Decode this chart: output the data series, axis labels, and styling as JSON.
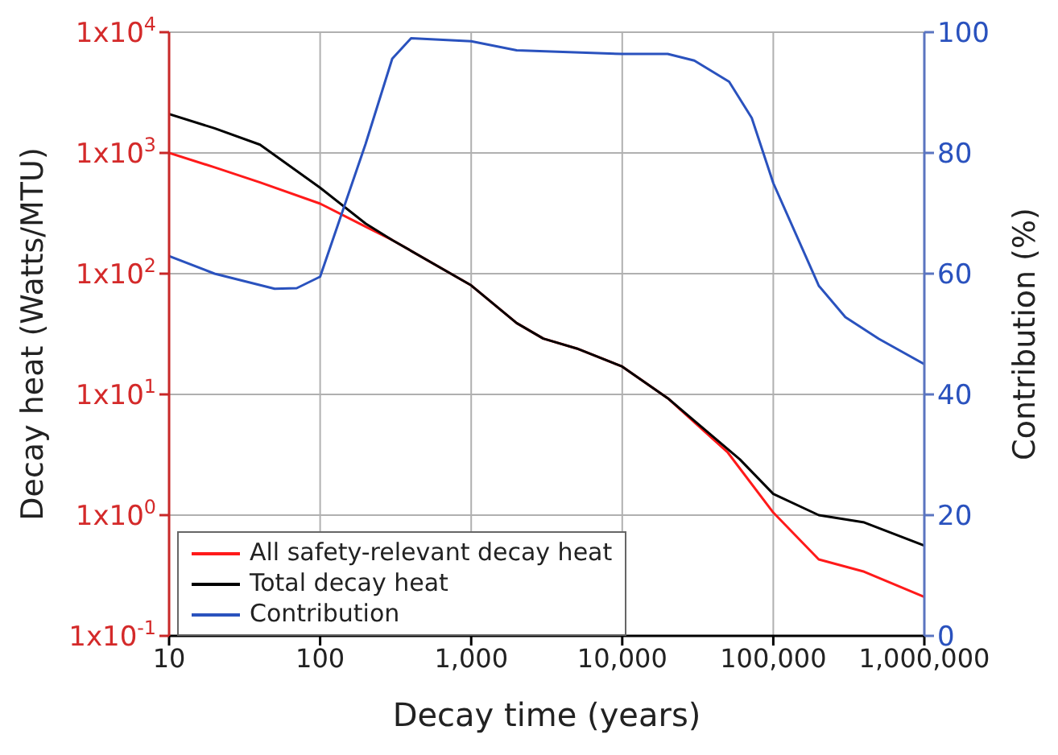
{
  "chart_data": {
    "type": "line",
    "xlabel": "Decay time (years)",
    "ylabel": "Decay heat (Watts/MTU)",
    "y2label": "Contribution (%)",
    "log": "xy",
    "grid": true,
    "legend": "bottom left",
    "marker": "none",
    "line_style": "solid",
    "xlim": [
      10,
      1000000
    ],
    "xticks": [
      10,
      100,
      {
        "value": 1000,
        "label": "1,000"
      },
      {
        "value": 10000,
        "label": "10,000"
      },
      {
        "value": 100000,
        "label": "100,000"
      },
      {
        "value": 1000000,
        "label": "1,000,000"
      }
    ],
    "ylim": [
      0.1,
      10000
    ],
    "yticks": [
      {
        "value": 0.1,
        "label": "1x10$^{-1}$"
      },
      {
        "value": 1,
        "label": "1x10$^{0}$"
      },
      {
        "value": 10,
        "label": "1x10$^{1}$"
      },
      {
        "value": 100,
        "label": "1x10$^{2}$"
      },
      {
        "value": 1000,
        "label": "1x10$^{3}$"
      },
      {
        "value": 10000,
        "label": "1x10$^{4}$"
      }
    ],
    "y2lim": [
      0,
      100
    ],
    "y2ticks": [
      0,
      20,
      40,
      60,
      80,
      100
    ],
    "series": [
      {
        "name": "All safety-relevant decay heat",
        "color": "#ff1a1a",
        "x": [
          10,
          20,
          40,
          100,
          200,
          300,
          1000,
          2000,
          3000,
          5000,
          10000,
          20000,
          50000,
          100000,
          200000,
          400000,
          1000000
        ],
        "values": [
          1000,
          760,
          570,
          380,
          245,
          190,
          80,
          39,
          29,
          24,
          17,
          9.3,
          3.3,
          1.05,
          0.43,
          0.34,
          0.21
        ]
      },
      {
        "name": "Total decay heat",
        "color": "#000000",
        "x": [
          10,
          20,
          40,
          100,
          200,
          300,
          1000,
          2000,
          3000,
          5000,
          10000,
          20000,
          60000,
          100000,
          200000,
          400000,
          1000000
        ],
        "values": [
          2100,
          1600,
          1170,
          515,
          260,
          190,
          80,
          39,
          29,
          24,
          17,
          9.3,
          2.9,
          1.5,
          1.0,
          0.87,
          0.56
        ]
      },
      {
        "name": "Contribution",
        "color": "#2a52be",
        "axis": "y2",
        "x": [
          10,
          20,
          50,
          70,
          100,
          200,
          300,
          400,
          1000,
          2000,
          10000,
          20000,
          30000,
          51000,
          72000,
          100000,
          200000,
          300000,
          500000,
          1000000
        ],
        "values": [
          62.9,
          60,
          57.5,
          57.6,
          59.5,
          81.5,
          95.6,
          99,
          98.5,
          97,
          96.4,
          96.4,
          95.3,
          91.8,
          85.8,
          75,
          58,
          52.8,
          49.2,
          45
        ]
      }
    ]
  }
}
